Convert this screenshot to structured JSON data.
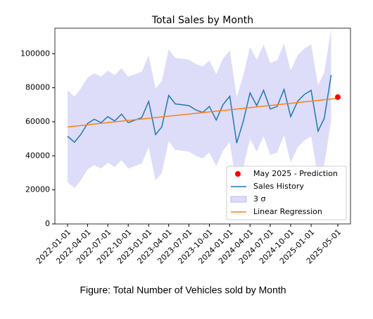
{
  "chart_data": {
    "type": "line",
    "title": "Total Sales by Month",
    "caption": "Figure: Total Number of Vehicles sold by Month",
    "x": [
      "2022-01-01",
      "2022-02-01",
      "2022-03-01",
      "2022-04-01",
      "2022-05-01",
      "2022-06-01",
      "2022-07-01",
      "2022-08-01",
      "2022-09-01",
      "2022-10-01",
      "2022-11-01",
      "2022-12-01",
      "2023-01-01",
      "2023-02-01",
      "2023-03-01",
      "2023-04-01",
      "2023-05-01",
      "2023-06-01",
      "2023-07-01",
      "2023-08-01",
      "2023-09-01",
      "2023-10-01",
      "2023-11-01",
      "2023-12-01",
      "2024-01-01",
      "2024-02-01",
      "2024-03-01",
      "2024-04-01",
      "2024-05-01",
      "2024-06-01",
      "2024-07-01",
      "2024-08-01",
      "2024-09-01",
      "2024-10-01",
      "2024-11-01",
      "2024-12-01",
      "2025-01-01",
      "2025-02-01",
      "2025-03-01",
      "2025-04-01"
    ],
    "series": [
      {
        "name": "May 2025 - Prediction",
        "kind": "point",
        "color": "#ff0000",
        "x": [
          "2025-05-01"
        ],
        "values": [
          74500
        ]
      },
      {
        "name": "Sales History",
        "kind": "line",
        "color": "#1f77b4",
        "values": [
          51500,
          48000,
          52500,
          59000,
          61500,
          59500,
          63000,
          60500,
          64500,
          59500,
          61000,
          62500,
          72000,
          52500,
          57000,
          75500,
          70500,
          70000,
          69500,
          67000,
          65500,
          69000,
          61000,
          70000,
          75000,
          47500,
          60000,
          77000,
          69500,
          78500,
          67500,
          69000,
          79000,
          63000,
          72000,
          76000,
          78500,
          54500,
          62000,
          87500
        ]
      },
      {
        "name": "3 σ",
        "kind": "band",
        "color": "#ddddfa",
        "upper": [
          78500,
          75000,
          79500,
          86000,
          88500,
          86500,
          90000,
          87500,
          91500,
          86500,
          88000,
          89500,
          99000,
          79500,
          84000,
          102500,
          97500,
          97000,
          96500,
          94000,
          92500,
          96000,
          88000,
          97000,
          102000,
          74500,
          87000,
          104000,
          96500,
          105500,
          94500,
          96000,
          106000,
          90000,
          99000,
          103000,
          105500,
          81500,
          89000,
          114500
        ],
        "lower": [
          24500,
          21000,
          25500,
          32000,
          34500,
          32500,
          36000,
          33500,
          37500,
          32500,
          34000,
          35500,
          45000,
          25500,
          30000,
          48500,
          43500,
          43000,
          42500,
          40000,
          38500,
          42000,
          34000,
          43000,
          48000,
          20500,
          33000,
          50000,
          42500,
          51500,
          40500,
          42000,
          52000,
          36000,
          45000,
          49000,
          51500,
          27500,
          35000,
          60500
        ]
      },
      {
        "name": "Linear Regression",
        "kind": "line",
        "color": "#ff7f0e",
        "x": [
          "2022-01-01",
          "2025-05-01"
        ],
        "values": [
          57000,
          73800
        ]
      }
    ],
    "xlim": [
      "2021-11-05",
      "2025-06-27"
    ],
    "xticks": [
      "2022-01-01",
      "2022-04-01",
      "2022-07-01",
      "2022-10-01",
      "2023-01-01",
      "2023-04-01",
      "2023-07-01",
      "2023-10-01",
      "2024-01-01",
      "2024-04-01",
      "2024-07-01",
      "2024-10-01",
      "2025-01-01",
      "2025-05-01"
    ],
    "ylim": [
      0,
      115000
    ],
    "yticks": [
      0,
      20000,
      40000,
      60000,
      80000,
      100000
    ],
    "grid": false,
    "legend": "lower right"
  }
}
